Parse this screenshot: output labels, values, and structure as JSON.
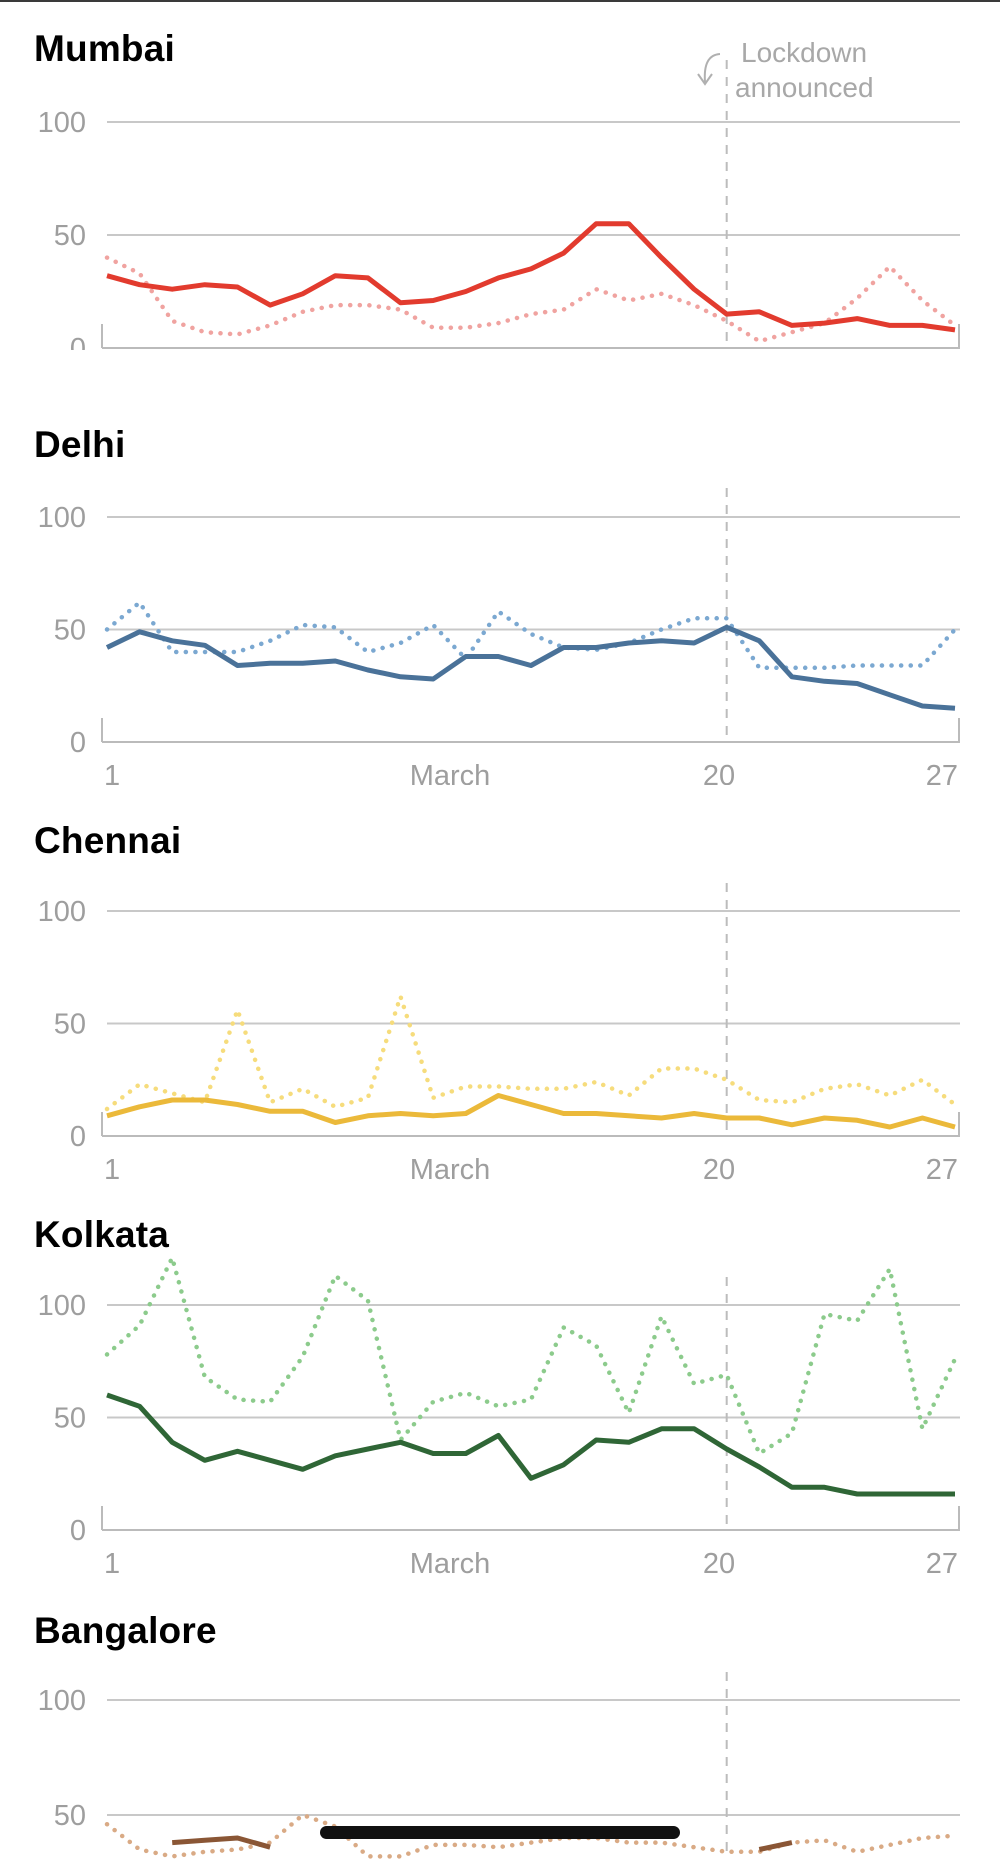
{
  "annotation": {
    "line1": "Lockdown",
    "line2": "announced",
    "day": 20
  },
  "chart_data": [
    {
      "type": "line",
      "title": "Mumbai",
      "color": "#e23b2e",
      "dotted_color": "#f0a3a0",
      "x_ticks": [
        "1",
        "March",
        "20",
        "27"
      ],
      "y_ticks": [
        "100",
        "50",
        "0"
      ],
      "ylim": [
        0,
        100
      ],
      "x": [
        1,
        2,
        3,
        4,
        5,
        6,
        7,
        8,
        9,
        10,
        11,
        12,
        13,
        14,
        15,
        16,
        17,
        18,
        19,
        20,
        21,
        22,
        23,
        24,
        25,
        26,
        27
      ],
      "series": [
        {
          "style": "solid",
          "values": [
            32,
            28,
            26,
            28,
            27,
            19,
            24,
            32,
            31,
            20,
            21,
            25,
            31,
            35,
            42,
            55,
            55,
            40,
            26,
            15,
            16,
            10,
            11,
            13,
            10,
            10,
            8
          ]
        },
        {
          "style": "dotted",
          "values": [
            40,
            33,
            12,
            7,
            6,
            10,
            16,
            19,
            19,
            17,
            9,
            9,
            11,
            15,
            17,
            26,
            21,
            24,
            19,
            12,
            3,
            7,
            11,
            22,
            36,
            21,
            10
          ]
        }
      ]
    },
    {
      "type": "line",
      "title": "Delhi",
      "color": "#4a7299",
      "dotted_color": "#7ba8d1",
      "x_ticks": [
        "1",
        "March",
        "20",
        "27"
      ],
      "y_ticks": [
        "100",
        "50",
        "0"
      ],
      "ylim": [
        0,
        100
      ],
      "x": [
        1,
        2,
        3,
        4,
        5,
        6,
        7,
        8,
        9,
        10,
        11,
        12,
        13,
        14,
        15,
        16,
        17,
        18,
        19,
        20,
        21,
        22,
        23,
        24,
        25,
        26,
        27
      ],
      "series": [
        {
          "style": "solid",
          "values": [
            42,
            49,
            45,
            43,
            34,
            35,
            35,
            36,
            32,
            29,
            28,
            38,
            38,
            34,
            42,
            42,
            44,
            45,
            44,
            51,
            45,
            29,
            27,
            26,
            21,
            16,
            15
          ]
        },
        {
          "style": "dotted",
          "values": [
            50,
            62,
            40,
            40,
            40,
            45,
            52,
            51,
            40,
            44,
            52,
            37,
            58,
            48,
            42,
            41,
            44,
            50,
            55,
            55,
            33,
            33,
            33,
            34,
            34,
            34,
            50
          ]
        }
      ]
    },
    {
      "type": "line",
      "title": "Chennai",
      "color": "#ebb93a",
      "dotted_color": "#f6dc7c",
      "x_ticks": [
        "1",
        "March",
        "20",
        "27"
      ],
      "y_ticks": [
        "100",
        "50",
        "0"
      ],
      "ylim": [
        0,
        100
      ],
      "x": [
        1,
        2,
        3,
        4,
        5,
        6,
        7,
        8,
        9,
        10,
        11,
        12,
        13,
        14,
        15,
        16,
        17,
        18,
        19,
        20,
        21,
        22,
        23,
        24,
        25,
        26,
        27
      ],
      "series": [
        {
          "style": "solid",
          "values": [
            9,
            13,
            16,
            16,
            14,
            11,
            11,
            6,
            9,
            10,
            9,
            10,
            18,
            14,
            10,
            10,
            9,
            8,
            10,
            8,
            8,
            5,
            8,
            7,
            4,
            8,
            4
          ]
        },
        {
          "style": "dotted",
          "values": [
            12,
            23,
            19,
            15,
            56,
            15,
            21,
            13,
            17,
            62,
            17,
            22,
            22,
            21,
            21,
            24,
            18,
            30,
            30,
            25,
            16,
            15,
            21,
            23,
            18,
            25,
            14
          ]
        }
      ]
    },
    {
      "type": "line",
      "title": "Kolkata",
      "color": "#2f6636",
      "dotted_color": "#8ccb8c",
      "x_ticks": [
        "1",
        "March",
        "20",
        "27"
      ],
      "y_ticks": [
        "100",
        "50",
        "0"
      ],
      "ylim": [
        0,
        100
      ],
      "x": [
        1,
        2,
        3,
        4,
        5,
        6,
        7,
        8,
        9,
        10,
        11,
        12,
        13,
        14,
        15,
        16,
        17,
        18,
        19,
        20,
        21,
        22,
        23,
        24,
        25,
        26,
        27
      ],
      "series": [
        {
          "style": "solid",
          "values": [
            60,
            55,
            39,
            31,
            35,
            31,
            27,
            33,
            36,
            39,
            34,
            34,
            42,
            23,
            29,
            40,
            39,
            45,
            45,
            36,
            28,
            19,
            19,
            16,
            16,
            16,
            16
          ]
        },
        {
          "style": "dotted",
          "values": [
            78,
            91,
            121,
            68,
            58,
            57,
            77,
            113,
            102,
            40,
            57,
            61,
            55,
            58,
            90,
            82,
            52,
            95,
            65,
            69,
            34,
            43,
            96,
            93,
            116,
            45,
            76
          ]
        }
      ]
    },
    {
      "type": "line",
      "title": "Bangalore",
      "color": "#8a5635",
      "dotted_color": "#d9aa85",
      "x_ticks": [],
      "y_ticks": [
        "100",
        "50"
      ],
      "ylim": [
        0,
        100
      ],
      "x": [
        1,
        2,
        3,
        4,
        5,
        6,
        7,
        8,
        9,
        10,
        11,
        12,
        13,
        14,
        15,
        16,
        17,
        18,
        19,
        20,
        21,
        22,
        23,
        24,
        25,
        26,
        27
      ],
      "series": [
        {
          "style": "solid",
          "values": [
            null,
            null,
            38,
            39,
            40,
            36,
            null,
            null,
            null,
            null,
            null,
            null,
            null,
            null,
            null,
            null,
            null,
            null,
            null,
            null,
            35,
            38,
            null,
            null,
            null,
            null,
            null
          ]
        },
        {
          "style": "dotted",
          "values": [
            46,
            35,
            32,
            34,
            35,
            38,
            50,
            45,
            32,
            32,
            37,
            37,
            36,
            38,
            40,
            40,
            38,
            38,
            36,
            34,
            34,
            38,
            39,
            34,
            37,
            40,
            41
          ]
        }
      ]
    }
  ]
}
